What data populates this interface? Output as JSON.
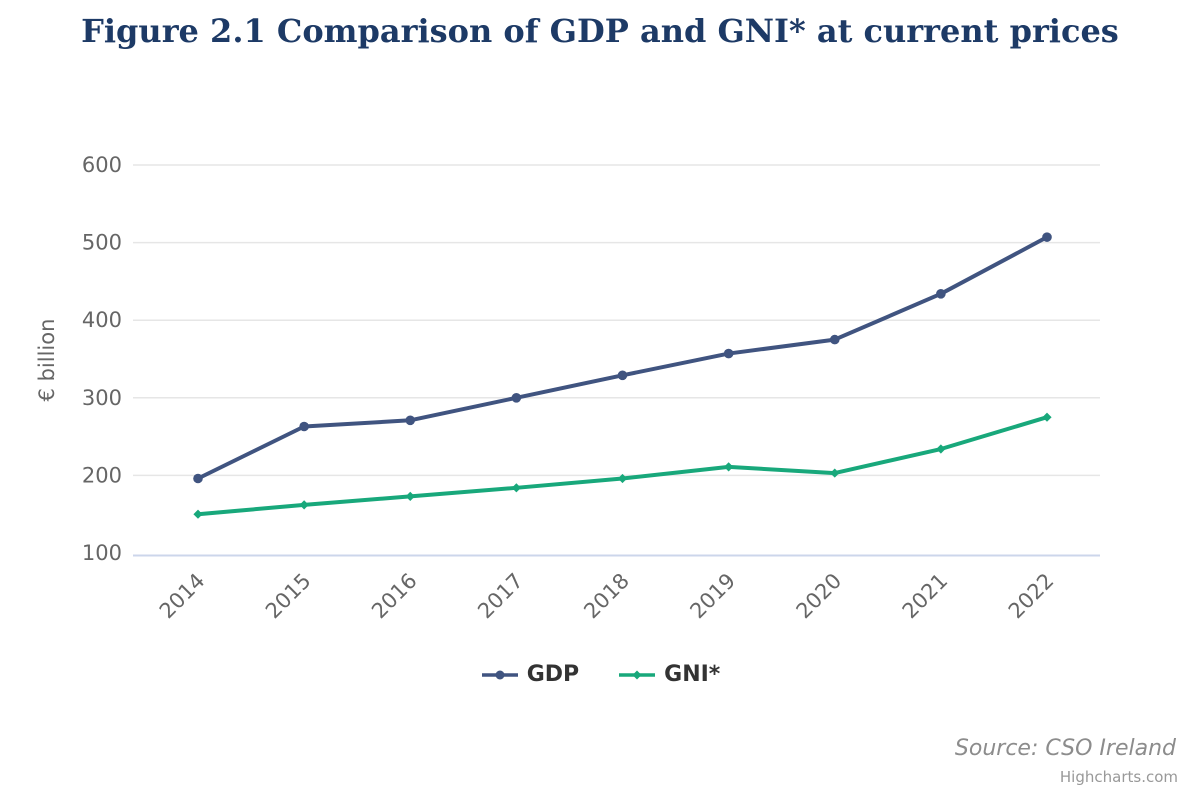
{
  "chart_data": {
    "type": "line",
    "title": "Figure 2.1 Comparison of GDP and GNI* at current prices",
    "xlabel": "",
    "ylabel": "€ billion",
    "categories": [
      "2014",
      "2015",
      "2016",
      "2017",
      "2018",
      "2019",
      "2020",
      "2021",
      "2022"
    ],
    "series": [
      {
        "name": "GDP",
        "color": "#405480",
        "marker": "circle",
        "values": [
          196,
          263,
          271,
          300,
          329,
          357,
          375,
          434,
          507
        ]
      },
      {
        "name": "GNI*",
        "color": "#18A87B",
        "marker": "diamond",
        "values": [
          150,
          162,
          173,
          184,
          196,
          211,
          203,
          234,
          275
        ]
      }
    ],
    "ylim": [
      100,
      600
    ],
    "ytick_interval": 100,
    "yticks": [
      "100",
      "200",
      "300",
      "400",
      "500",
      "600"
    ],
    "grid": true,
    "legend_position": "bottom",
    "source": "Source: CSO Ireland",
    "credits": "Highcharts.com",
    "colors": {
      "title": "#1D3A66",
      "grid_line": "#E6E6E6",
      "axis_line": "#CCD6EB",
      "tick_label": "#666666",
      "axis_title": "#666666",
      "legend_text": "#333333",
      "source_text": "#8C8C8C",
      "credits_text": "#999999"
    }
  }
}
